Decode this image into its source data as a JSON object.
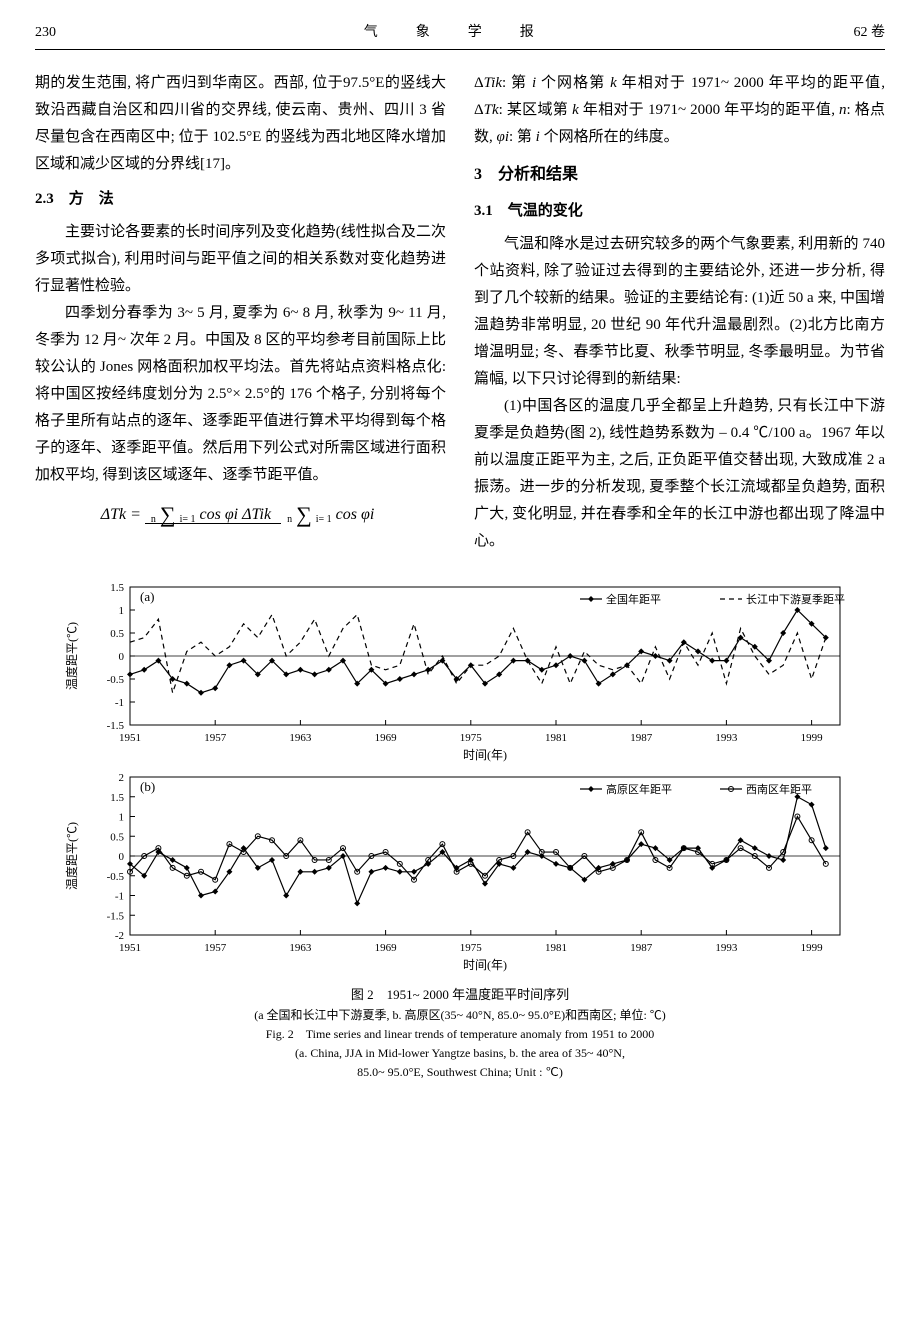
{
  "header": {
    "page_number": "230",
    "journal_title": "气　象　学　报",
    "volume": "62 卷"
  },
  "left_column": {
    "p1": "期的发生范围, 将广西归到华南区。西部, 位于97.5°E的竖线大致沿西藏自治区和四川省的交界线, 使云南、贵州、四川 3 省尽量包含在西南区中; 位于 102.5°E 的竖线为西北地区降水增加区域和减少区域的分界线[17]。",
    "sec23_head": "2.3　方　法",
    "p2": "主要讨论各要素的长时间序列及变化趋势(线性拟合及二次多项式拟合), 利用时间与距平值之间的相关系数对变化趋势进行显著性检验。",
    "p3": "四季划分春季为 3~ 5 月, 夏季为 6~ 8 月, 秋季为 9~ 11 月, 冬季为 12 月~ 次年 2 月。中国及 8 区的平均参考目前国际上比较公认的 Jones 网格面积加权平均法。首先将站点资料格点化: 将中国区按经纬度划分为 2.5°× 2.5°的 176 个格子, 分别将每个格子里所有站点的逐年、逐季距平值进行算术平均得到每个格子的逐年、逐季距平值。然后用下列公式对所需区域进行面积加权平均, 得到该区域逐年、逐季节距平值。",
    "formula_lhs": "ΔTk =",
    "formula_num_sum_top": "n",
    "formula_num_sum_bot": "i= 1",
    "formula_num_body": "cos φi ΔTik",
    "formula_den_sum_top": "n",
    "formula_den_sum_bot": "i= 1",
    "formula_den_body": "cos φi"
  },
  "right_column": {
    "p1_pre": "Δ",
    "p1_var1": "Tik",
    "p1_mid1": ": 第 ",
    "p1_var2": "i",
    "p1_mid2": " 个网格第 ",
    "p1_var3": "k",
    "p1_mid3": " 年相对于 1971~ 2000 年平均的距平值, Δ",
    "p1_var4": "Tk",
    "p1_mid4": ": 某区域第 ",
    "p1_var5": "k",
    "p1_mid5": " 年相对于 1971~ 2000 年平均的距平值, ",
    "p1_var6": "n",
    "p1_mid6": ": 格点数, ",
    "p1_var7": "φi",
    "p1_mid7": ": 第 ",
    "p1_var8": "i",
    "p1_mid8": " 个网格所在的纬度。",
    "sec3_head": "3　分析和结果",
    "sec31_head": "3.1　气温的变化",
    "p2": "气温和降水是过去研究较多的两个气象要素, 利用新的 740 个站资料, 除了验证过去得到的主要结论外, 还进一步分析, 得到了几个较新的结果。验证的主要结论有: (1)近 50 a 来, 中国增温趋势非常明显, 20 世纪 90 年代升温最剧烈。(2)北方比南方增温明显; 冬、春季节比夏、秋季节明显, 冬季最明显。为节省篇幅, 以下只讨论得到的新结果:",
    "p3": "(1)中国各区的温度几乎全都呈上升趋势, 只有长江中下游夏季是负趋势(图 2), 线性趋势系数为 – 0.4 ℃/100 a。1967 年以前以温度正距平为主, 之后, 正负距平值交替出现, 大致成准 2 a 振荡。进一步的分析发现, 夏季整个长江流域都呈负趋势, 面积广大, 变化明显, 并在春季和全年的长江中游也都出现了降温中心。"
  },
  "figure": {
    "chart_a": {
      "type": "line",
      "panel_label": "(a)",
      "x_label": "时间(年)",
      "y_label": "温度距平(℃)",
      "xlim": [
        1951,
        2001
      ],
      "ylim": [
        -1.5,
        1.5
      ],
      "xticks": [
        1951,
        1957,
        1963,
        1969,
        1975,
        1981,
        1987,
        1993,
        1999
      ],
      "yticks": [
        -1.5,
        -1,
        -0.5,
        0,
        0.5,
        1,
        1.5
      ],
      "legend": [
        {
          "label": "全国年距平",
          "marker": "diamond",
          "dash": "solid",
          "color": "#000000"
        },
        {
          "label": "长江中下游夏季距平",
          "marker": "none",
          "dash": "dashed",
          "color": "#000000"
        }
      ],
      "series1_years": [
        1951,
        1952,
        1953,
        1954,
        1955,
        1956,
        1957,
        1958,
        1959,
        1960,
        1961,
        1962,
        1963,
        1964,
        1965,
        1966,
        1967,
        1968,
        1969,
        1970,
        1971,
        1972,
        1973,
        1974,
        1975,
        1976,
        1977,
        1978,
        1979,
        1980,
        1981,
        1982,
        1983,
        1984,
        1985,
        1986,
        1987,
        1988,
        1989,
        1990,
        1991,
        1992,
        1993,
        1994,
        1995,
        1996,
        1997,
        1998,
        1999,
        2000
      ],
      "series1_values": [
        -0.4,
        -0.3,
        -0.1,
        -0.5,
        -0.6,
        -0.8,
        -0.7,
        -0.2,
        -0.1,
        -0.4,
        -0.1,
        -0.4,
        -0.3,
        -0.4,
        -0.3,
        -0.1,
        -0.6,
        -0.3,
        -0.6,
        -0.5,
        -0.4,
        -0.3,
        -0.1,
        -0.5,
        -0.2,
        -0.6,
        -0.4,
        -0.1,
        -0.1,
        -0.3,
        -0.2,
        0.0,
        -0.1,
        -0.6,
        -0.4,
        -0.2,
        0.1,
        0.0,
        -0.1,
        0.3,
        0.1,
        -0.1,
        -0.1,
        0.4,
        0.2,
        -0.1,
        0.5,
        1.0,
        0.7,
        0.4
      ],
      "series2_years": [
        1951,
        1952,
        1953,
        1954,
        1955,
        1956,
        1957,
        1958,
        1959,
        1960,
        1961,
        1962,
        1963,
        1964,
        1965,
        1966,
        1967,
        1968,
        1969,
        1970,
        1971,
        1972,
        1973,
        1974,
        1975,
        1976,
        1977,
        1978,
        1979,
        1980,
        1981,
        1982,
        1983,
        1984,
        1985,
        1986,
        1987,
        1988,
        1989,
        1990,
        1991,
        1992,
        1993,
        1994,
        1995,
        1996,
        1997,
        1998,
        1999,
        2000
      ],
      "series2_values": [
        0.3,
        0.4,
        0.8,
        -0.8,
        0.1,
        0.3,
        0.0,
        0.2,
        0.7,
        0.4,
        0.9,
        0.0,
        0.3,
        0.8,
        0.0,
        0.6,
        0.9,
        -0.2,
        -0.3,
        -0.2,
        0.7,
        -0.4,
        0.0,
        -0.6,
        -0.2,
        -0.2,
        0.0,
        0.6,
        -0.1,
        -0.6,
        0.2,
        -0.6,
        0.1,
        -0.2,
        -0.3,
        -0.2,
        -0.6,
        0.2,
        -0.5,
        0.3,
        -0.2,
        0.5,
        -0.6,
        0.6,
        0.0,
        -0.4,
        -0.2,
        0.5,
        -0.5,
        0.4
      ],
      "background_color": "#ffffff",
      "axis_color": "#000000",
      "line_width": 1.2
    },
    "chart_b": {
      "type": "line",
      "panel_label": "(b)",
      "x_label": "时间(年)",
      "y_label": "温度距平(℃)",
      "xlim": [
        1951,
        2001
      ],
      "ylim": [
        -2,
        2
      ],
      "xticks": [
        1951,
        1957,
        1963,
        1969,
        1975,
        1981,
        1987,
        1993,
        1999
      ],
      "yticks": [
        -2,
        -1.5,
        -1,
        -0.5,
        0,
        0.5,
        1,
        1.5,
        2
      ],
      "legend": [
        {
          "label": "高原区年距平",
          "marker": "diamond",
          "dash": "solid",
          "color": "#000000"
        },
        {
          "label": "西南区年距平",
          "marker": "circle",
          "dash": "solid",
          "color": "#000000"
        }
      ],
      "series1_years": [
        1951,
        1952,
        1953,
        1954,
        1955,
        1956,
        1957,
        1958,
        1959,
        1960,
        1961,
        1962,
        1963,
        1964,
        1965,
        1966,
        1967,
        1968,
        1969,
        1970,
        1971,
        1972,
        1973,
        1974,
        1975,
        1976,
        1977,
        1978,
        1979,
        1980,
        1981,
        1982,
        1983,
        1984,
        1985,
        1986,
        1987,
        1988,
        1989,
        1990,
        1991,
        1992,
        1993,
        1994,
        1995,
        1996,
        1997,
        1998,
        1999,
        2000
      ],
      "series1_values": [
        -0.2,
        -0.5,
        0.1,
        -0.1,
        -0.3,
        -1.0,
        -0.9,
        -0.4,
        0.2,
        -0.3,
        -0.1,
        -1.0,
        -0.4,
        -0.4,
        -0.3,
        0.0,
        -1.2,
        -0.4,
        -0.3,
        -0.4,
        -0.4,
        -0.2,
        0.1,
        -0.3,
        -0.1,
        -0.7,
        -0.2,
        -0.3,
        0.1,
        0.0,
        -0.2,
        -0.3,
        -0.6,
        -0.3,
        -0.2,
        -0.1,
        0.3,
        0.2,
        -0.1,
        0.2,
        0.2,
        -0.3,
        -0.1,
        0.4,
        0.2,
        0.0,
        -0.1,
        1.5,
        1.3,
        0.2
      ],
      "series2_years": [
        1951,
        1952,
        1953,
        1954,
        1955,
        1956,
        1957,
        1958,
        1959,
        1960,
        1961,
        1962,
        1963,
        1964,
        1965,
        1966,
        1967,
        1968,
        1969,
        1970,
        1971,
        1972,
        1973,
        1974,
        1975,
        1976,
        1977,
        1978,
        1979,
        1980,
        1981,
        1982,
        1983,
        1984,
        1985,
        1986,
        1987,
        1988,
        1989,
        1990,
        1991,
        1992,
        1993,
        1994,
        1995,
        1996,
        1997,
        1998,
        1999,
        2000
      ],
      "series2_values": [
        -0.4,
        0.0,
        0.2,
        -0.3,
        -0.5,
        -0.4,
        -0.6,
        0.3,
        0.1,
        0.5,
        0.4,
        0.0,
        0.4,
        -0.1,
        -0.1,
        0.2,
        -0.4,
        0.0,
        0.1,
        -0.2,
        -0.6,
        -0.1,
        0.3,
        -0.4,
        -0.2,
        -0.5,
        -0.1,
        0.0,
        0.6,
        0.1,
        0.1,
        -0.3,
        0.0,
        -0.4,
        -0.3,
        -0.1,
        0.6,
        -0.1,
        -0.3,
        0.2,
        0.1,
        -0.2,
        -0.1,
        0.2,
        0.0,
        -0.3,
        0.1,
        1.0,
        0.4,
        -0.2
      ],
      "background_color": "#ffffff",
      "axis_color": "#000000",
      "line_width": 1.2
    },
    "caption_main": "图 2　1951~ 2000 年温度距平时间序列",
    "caption_sub": "(a 全国和长江中下游夏季, b. 高原区(35~ 40°N, 85.0~ 95.0°E)和西南区; 单位: ℃)",
    "caption_en_line": "Fig. 2　Time series and linear trends of temperature anomaly from 1951 to 2000",
    "caption_en_sub1": "(a. China, JJA in Mid-lower Yangtze basins, b. the area of 35~ 40°N,",
    "caption_en_sub2": "85.0~ 95.0°E, Southwest China; Unit : ℃)"
  },
  "colors": {
    "text": "#000000",
    "bg": "#ffffff",
    "axis": "#000000"
  }
}
